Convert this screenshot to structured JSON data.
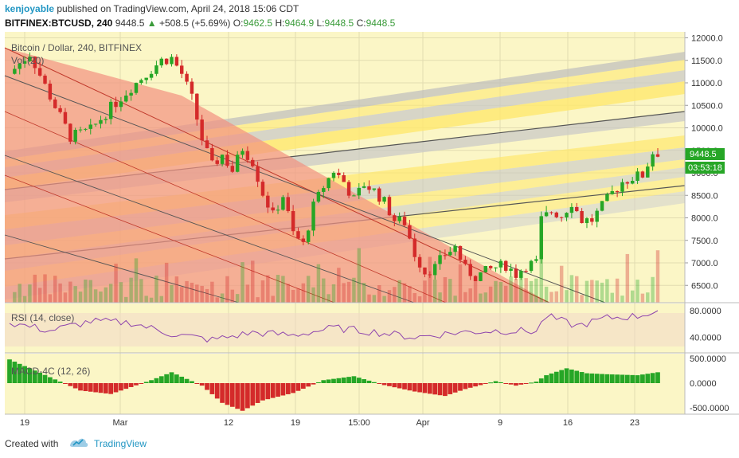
{
  "header": {
    "author": "kenjoyable",
    "published_text": "published on TradingView.com, April 24, 2018 15:06 CDT",
    "symbol": "BITFINEX:BTCUSD, 240",
    "price": "9448.5",
    "change_arrow": "▲",
    "change": "+508.5 (+5.69%)",
    "o_label": "O:",
    "o_value": "9462.5",
    "h_label": "H:",
    "h_value": "9464.9",
    "l_label": "L:",
    "l_value": "9448.5",
    "c_label": "C:",
    "c_value": "9448.5"
  },
  "footer": {
    "created_with": "Created with",
    "brand": "TradingView"
  },
  "colors": {
    "up": "#26a626",
    "down": "#d42a2a",
    "background": "#fbf6c6",
    "accent": "#2196c3"
  },
  "chart_data": [
    {
      "type": "candlestick",
      "title": "Bitcoin / Dollar, 240, BITFINEX",
      "indicator_label": "Vol (20)",
      "xlabel": "",
      "ylabel": "",
      "x_ticks": [
        "19",
        "Mar",
        "12",
        "19",
        "15:00",
        "Apr",
        "9",
        "16",
        "23"
      ],
      "y_ticks": [
        "6500.0",
        "7000.0",
        "7500.0",
        "8000.0",
        "8500.0",
        "9000.0",
        "9500.0",
        "10000.0",
        "10500.0",
        "11000.0",
        "11500.0",
        "12000.0"
      ],
      "ylim": [
        6150,
        12050
      ],
      "last_price_label": "9448.5",
      "countdown_label": "03:53:18",
      "close_path": [
        [
          0,
          11200
        ],
        [
          4,
          11650
        ],
        [
          8,
          10700
        ],
        [
          12,
          9800
        ],
        [
          16,
          9950
        ],
        [
          20,
          10450
        ],
        [
          24,
          10900
        ],
        [
          28,
          11300
        ],
        [
          30,
          11500
        ],
        [
          32,
          11550
        ],
        [
          34,
          11200
        ],
        [
          36,
          10650
        ],
        [
          38,
          9750
        ],
        [
          40,
          9150
        ],
        [
          42,
          9400
        ],
        [
          44,
          9050
        ],
        [
          46,
          9550
        ],
        [
          48,
          9250
        ],
        [
          50,
          8550
        ],
        [
          52,
          8050
        ],
        [
          54,
          8500
        ],
        [
          56,
          7650
        ],
        [
          58,
          7400
        ],
        [
          60,
          8250
        ],
        [
          62,
          8700
        ],
        [
          64,
          9050
        ],
        [
          66,
          8800
        ],
        [
          68,
          8400
        ],
        [
          70,
          8750
        ],
        [
          72,
          8600
        ],
        [
          74,
          8350
        ],
        [
          76,
          7950
        ],
        [
          78,
          7900
        ],
        [
          80,
          7200
        ],
        [
          82,
          6800
        ],
        [
          84,
          6900
        ],
        [
          86,
          7200
        ],
        [
          88,
          7350
        ],
        [
          90,
          6850
        ],
        [
          92,
          6700
        ],
        [
          94,
          6800
        ],
        [
          96,
          6900
        ],
        [
          98,
          6950
        ],
        [
          100,
          6750
        ],
        [
          102,
          6950
        ],
        [
          104,
          7000
        ],
        [
          105,
          7950
        ],
        [
          107,
          8150
        ],
        [
          109,
          8050
        ],
        [
          111,
          8350
        ],
        [
          113,
          7950
        ],
        [
          115,
          7950
        ],
        [
          117,
          8250
        ],
        [
          119,
          8550
        ],
        [
          121,
          8800
        ],
        [
          123,
          8900
        ],
        [
          125,
          8950
        ],
        [
          127,
          9450
        ]
      ],
      "trend_channels": "descending red channel from Feb 16 high; ascending grey/yellow Fibonacci channels"
    },
    {
      "type": "line",
      "title": "RSI (14, close)",
      "yticks": [
        "80.0000",
        "40.0000"
      ],
      "ylim": [
        20,
        85
      ],
      "band": [
        30,
        70
      ],
      "path": [
        [
          0,
          62
        ],
        [
          8,
          50
        ],
        [
          16,
          64
        ],
        [
          24,
          62
        ],
        [
          32,
          45
        ],
        [
          40,
          36
        ],
        [
          48,
          47
        ],
        [
          56,
          43
        ],
        [
          64,
          54
        ],
        [
          72,
          48
        ],
        [
          80,
          40
        ],
        [
          88,
          47
        ],
        [
          96,
          50
        ],
        [
          104,
          49
        ],
        [
          106,
          72
        ],
        [
          112,
          57
        ],
        [
          118,
          69
        ],
        [
          124,
          72
        ],
        [
          128,
          80
        ]
      ]
    },
    {
      "type": "bar",
      "title": "MACD-4C (12, 26)",
      "yticks": [
        "500.0000",
        "0.0000",
        "-500.0000"
      ],
      "ylim": [
        -650,
        560
      ],
      "path": [
        [
          0,
          480
        ],
        [
          8,
          120
        ],
        [
          14,
          -150
        ],
        [
          20,
          -220
        ],
        [
          28,
          60
        ],
        [
          32,
          220
        ],
        [
          38,
          -50
        ],
        [
          42,
          -400
        ],
        [
          46,
          -560
        ],
        [
          50,
          -350
        ],
        [
          56,
          -200
        ],
        [
          62,
          60
        ],
        [
          68,
          140
        ],
        [
          74,
          -40
        ],
        [
          80,
          -170
        ],
        [
          86,
          -260
        ],
        [
          90,
          -120
        ],
        [
          96,
          40
        ],
        [
          100,
          -50
        ],
        [
          104,
          30
        ],
        [
          106,
          160
        ],
        [
          110,
          300
        ],
        [
          114,
          200
        ],
        [
          118,
          180
        ],
        [
          124,
          160
        ],
        [
          128,
          220
        ]
      ]
    }
  ]
}
